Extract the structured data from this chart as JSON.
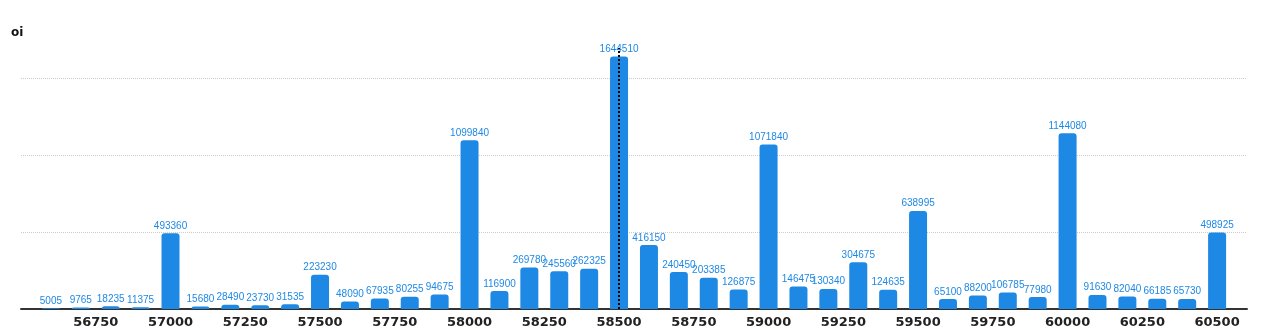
{
  "chart_data": {
    "type": "bar",
    "ylabel": "oi",
    "x": [
      56600,
      56700,
      56800,
      56900,
      57000,
      57100,
      57200,
      57300,
      57400,
      57500,
      57600,
      57700,
      57800,
      57900,
      58000,
      58100,
      58200,
      58300,
      58400,
      58500,
      58600,
      58700,
      58800,
      58900,
      59000,
      59100,
      59200,
      59300,
      59400,
      59500,
      59600,
      59700,
      59800,
      59900,
      60000,
      60100,
      60200,
      60300,
      60400,
      60500
    ],
    "series": [
      {
        "color": "#1e88e5",
        "values": [
          5005,
          9765,
          18235,
          11375,
          493360,
          15680,
          28490,
          23730,
          31535,
          223230,
          48090,
          67935,
          80255,
          94675,
          1099840,
          116900,
          269780,
          245560,
          262325,
          1644510,
          416150,
          240450,
          203385,
          126875,
          1071840,
          146475,
          130340,
          304675,
          124635,
          638995,
          65100,
          88200,
          106785,
          77980,
          1144080,
          91630,
          82040,
          66185,
          65730,
          498925
        ]
      }
    ],
    "data_labels": true,
    "xlim": [
      56500,
      60600
    ],
    "xticks": [
      56750,
      57000,
      57250,
      57500,
      57750,
      58000,
      58250,
      58500,
      58750,
      59000,
      59250,
      59500,
      59750,
      60000,
      60250,
      60500
    ],
    "ylim": [
      0,
      1700000
    ],
    "yticks": [
      {
        "value": 0,
        "label": null
      },
      {
        "value": 500000,
        "label": null
      },
      {
        "value": 1000000,
        "label": null
      },
      {
        "value": 1500000,
        "label": null
      }
    ],
    "tick_labels": "x",
    "grid": "y",
    "ref_lines": [
      {
        "axis": "x",
        "value": 58500,
        "color": "#000000",
        "line_style": "dotted"
      }
    ]
  }
}
